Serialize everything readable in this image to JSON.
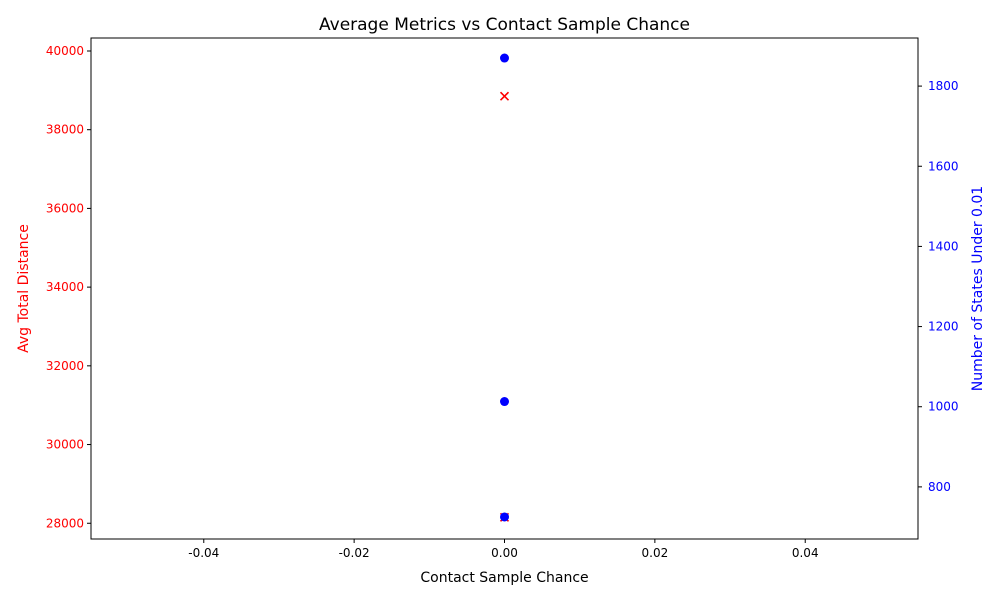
{
  "chart_data": {
    "type": "scatter",
    "title": "Average Metrics vs Contact Sample Chance",
    "xlabel": "Contact Sample Chance",
    "xlim": [
      -0.055,
      0.055
    ],
    "xticks": [
      -0.04,
      -0.02,
      0.0,
      0.02,
      0.04
    ],
    "xtick_labels": [
      "-0.04",
      "-0.02",
      "0.00",
      "0.02",
      "0.04"
    ],
    "grid": false,
    "legend": "none",
    "left_axis": {
      "label": "Avg Total Distance",
      "color": "#ff0000",
      "ylim": [
        27600,
        40330
      ],
      "ticks": [
        28000,
        30000,
        32000,
        34000,
        36000,
        38000,
        40000
      ],
      "tick_labels": [
        "28000",
        "30000",
        "32000",
        "34000",
        "36000",
        "38000",
        "40000"
      ]
    },
    "right_axis": {
      "label": "Number of States Under 0.01",
      "color": "#0000ff",
      "ylim": [
        670,
        1920
      ],
      "ticks": [
        800,
        1000,
        1200,
        1400,
        1600,
        1800
      ],
      "tick_labels": [
        "800",
        "1000",
        "1200",
        "1400",
        "1600",
        "1800"
      ]
    },
    "series": [
      {
        "axis": "left",
        "marker": "x",
        "color": "#ff0000",
        "points": [
          {
            "x": 0.0,
            "y": 38850
          },
          {
            "x": 0.0,
            "y": 28150
          }
        ]
      },
      {
        "axis": "right",
        "marker": "o",
        "color": "#0000ff",
        "points": [
          {
            "x": 0.0,
            "y": 1870
          },
          {
            "x": 0.0,
            "y": 1013
          },
          {
            "x": 0.0,
            "y": 725
          }
        ]
      }
    ]
  }
}
